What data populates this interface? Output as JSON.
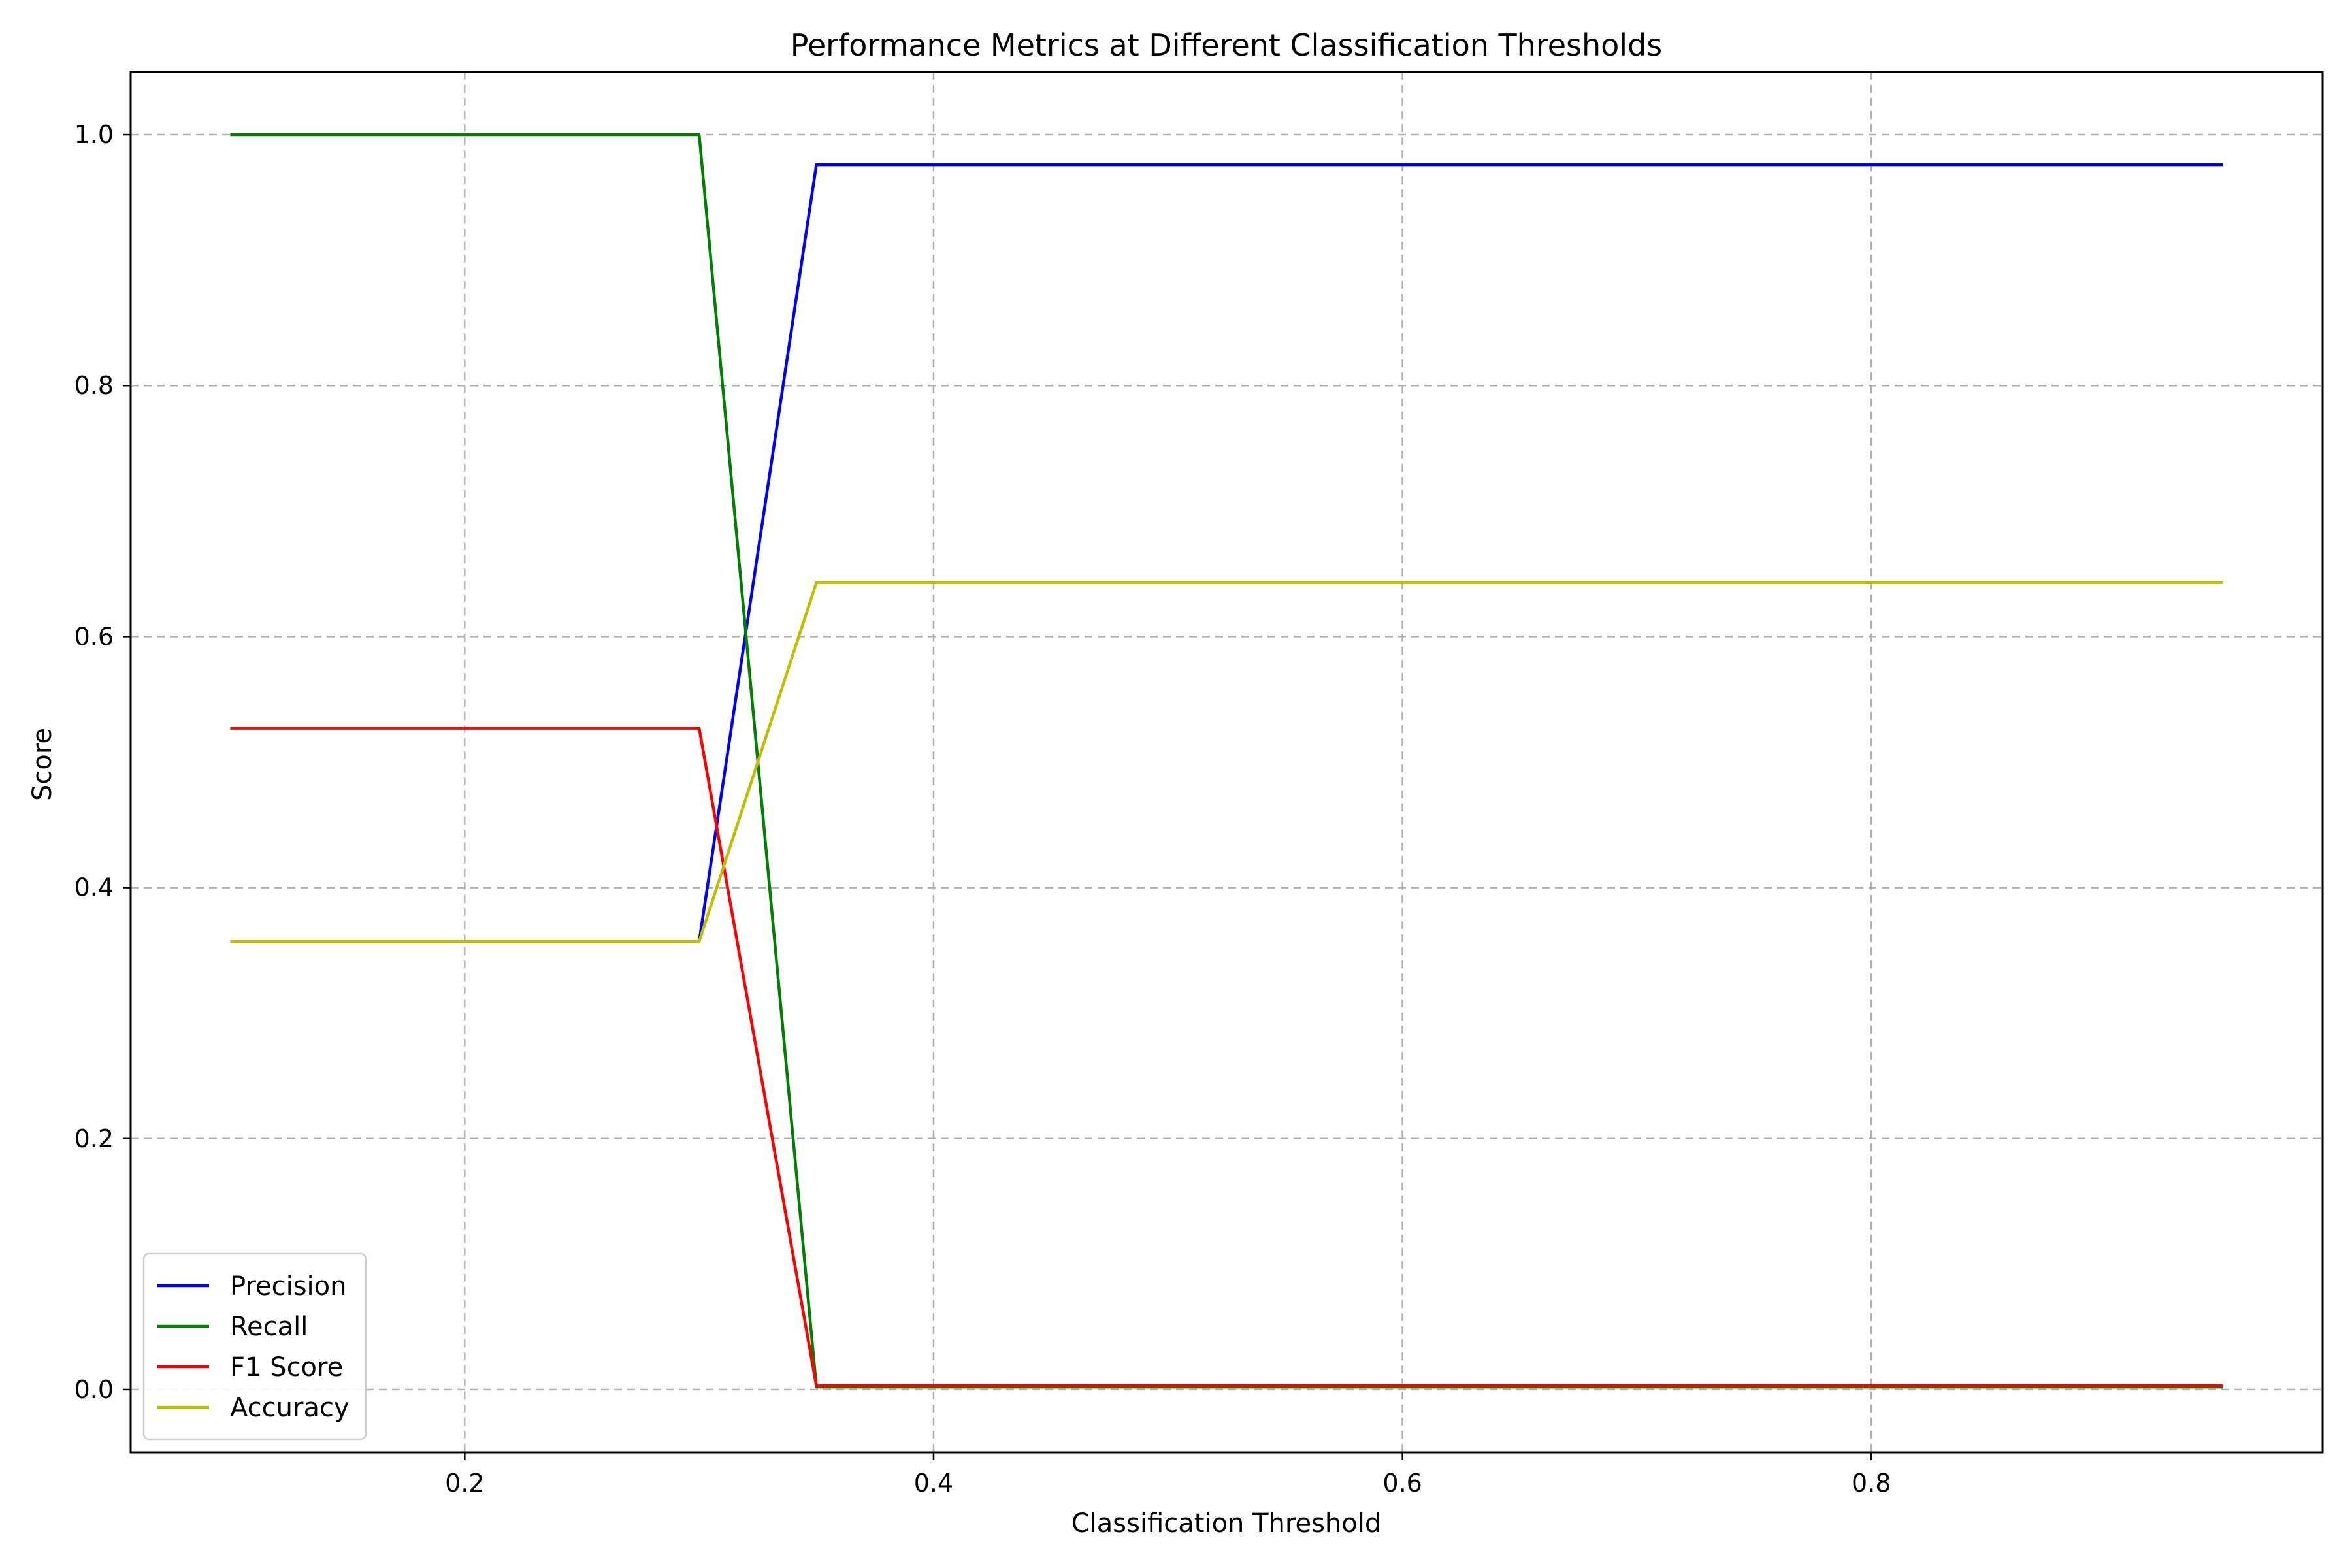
{
  "chart_data": {
    "type": "line",
    "title": "Performance Metrics at Different Classification Thresholds",
    "xlabel": "Classification Threshold",
    "ylabel": "Score",
    "x": [
      0.1,
      0.15,
      0.2,
      0.25,
      0.3,
      0.35,
      0.4,
      0.45,
      0.5,
      0.55,
      0.6,
      0.65,
      0.7,
      0.75,
      0.8,
      0.85,
      0.9,
      0.95
    ],
    "series": [
      {
        "name": "Precision",
        "color": "#0000ff",
        "values": [
          0.357,
          0.357,
          0.357,
          0.357,
          0.357,
          0.976,
          0.976,
          0.976,
          0.976,
          0.976,
          0.976,
          0.976,
          0.976,
          0.976,
          0.976,
          0.976,
          0.976,
          0.976
        ]
      },
      {
        "name": "Recall",
        "color": "#008000",
        "values": [
          1.0,
          1.0,
          1.0,
          1.0,
          1.0,
          0.002,
          0.002,
          0.002,
          0.002,
          0.002,
          0.002,
          0.002,
          0.002,
          0.002,
          0.002,
          0.002,
          0.002,
          0.002
        ]
      },
      {
        "name": "F1 Score",
        "color": "#ff0000",
        "values": [
          0.527,
          0.527,
          0.527,
          0.527,
          0.527,
          0.003,
          0.003,
          0.003,
          0.003,
          0.003,
          0.003,
          0.003,
          0.003,
          0.003,
          0.003,
          0.003,
          0.003,
          0.003
        ]
      },
      {
        "name": "Accuracy",
        "color": "#bfbf00",
        "values": [
          0.357,
          0.357,
          0.357,
          0.357,
          0.357,
          0.643,
          0.643,
          0.643,
          0.643,
          0.643,
          0.643,
          0.643,
          0.643,
          0.643,
          0.643,
          0.643,
          0.643,
          0.643
        ]
      }
    ],
    "xlim": [
      0.0575,
      0.9925
    ],
    "ylim": [
      -0.05,
      1.05
    ],
    "xticks": [
      0.2,
      0.4,
      0.6,
      0.8
    ],
    "xtick_labels": [
      "0.2",
      "0.4",
      "0.6",
      "0.8"
    ],
    "yticks": [
      0.0,
      0.2,
      0.4,
      0.6,
      0.8,
      1.0
    ],
    "ytick_labels": [
      "0.0",
      "0.2",
      "0.4",
      "0.6",
      "0.8",
      "1.0"
    ],
    "grid": true,
    "legend_position": "lower-left"
  }
}
